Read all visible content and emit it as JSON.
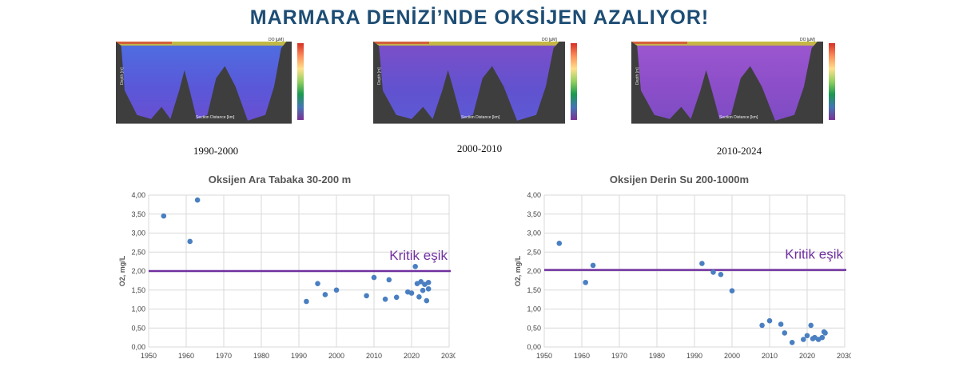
{
  "title": "MARMARA DENİZİ’NDE OKSİJEN AZALIYOR!",
  "sections": [
    {
      "period": "1990-2000",
      "variable": "DO [µM]",
      "depth_label": "Depth [m]",
      "distance_label": "Section Distance [km]"
    },
    {
      "period": "2000-2010",
      "variable": "DO [µM]",
      "depth_label": "Depth [m]",
      "distance_label": "Section Distance [km]"
    },
    {
      "period": "2010-2024",
      "variable": "DO [µM]",
      "depth_label": "Depth [m]",
      "distance_label": "Section Distance [km]"
    }
  ],
  "chart_data": [
    {
      "type": "scatter",
      "title": "Oksijen Ara Tabaka 30-200 m",
      "ylabel": "O2, mg/L",
      "xlabel": "",
      "xlim": [
        1950,
        2030
      ],
      "ylim": [
        0,
        4
      ],
      "xticks": [
        "1950",
        "1960",
        "1970",
        "1980",
        "1990",
        "2000",
        "2010",
        "2020",
        "2030"
      ],
      "yticks": [
        "0,00",
        "0,50",
        "1,00",
        "1,50",
        "2,00",
        "2,50",
        "3,00",
        "3,50",
        "4,00"
      ],
      "threshold": {
        "value": 2.0,
        "label": "Kritik eşik",
        "color": "#7030a0"
      },
      "point_color": "#4a7fc1",
      "grid": true,
      "points": [
        [
          1954,
          3.45
        ],
        [
          1961,
          2.78
        ],
        [
          1963,
          3.87
        ],
        [
          1992,
          1.2
        ],
        [
          1995,
          1.67
        ],
        [
          1997,
          1.38
        ],
        [
          2000,
          1.5
        ],
        [
          2008,
          1.35
        ],
        [
          2010,
          1.83
        ],
        [
          2013,
          1.26
        ],
        [
          2014,
          1.77
        ],
        [
          2016,
          1.31
        ],
        [
          2019,
          1.45
        ],
        [
          2020,
          1.42
        ],
        [
          2021,
          2.12
        ],
        [
          2021.5,
          1.67
        ],
        [
          2022,
          1.32
        ],
        [
          2022.5,
          1.72
        ],
        [
          2023,
          1.49
        ],
        [
          2023.5,
          1.65
        ],
        [
          2024,
          1.22
        ],
        [
          2024.5,
          1.7
        ],
        [
          2024.5,
          1.53
        ]
      ]
    },
    {
      "type": "scatter",
      "title": "Oksijen Derin Su 200-1000m",
      "ylabel": "O2, mg/L",
      "xlabel": "",
      "xlim": [
        1950,
        2030
      ],
      "ylim": [
        0,
        4
      ],
      "xticks": [
        "1950",
        "1960",
        "1970",
        "1980",
        "1990",
        "2000",
        "2010",
        "2020",
        "2030"
      ],
      "yticks": [
        "0,00",
        "0,50",
        "1,00",
        "1,50",
        "2,00",
        "2,50",
        "3,00",
        "3,50",
        "4,00"
      ],
      "threshold": {
        "value": 2.03,
        "label": "Kritik eşik",
        "color": "#7030a0"
      },
      "point_color": "#4a7fc1",
      "grid": true,
      "points": [
        [
          1954,
          2.73
        ],
        [
          1961,
          1.7
        ],
        [
          1963,
          2.15
        ],
        [
          1992,
          2.2
        ],
        [
          1995,
          1.97
        ],
        [
          1997,
          1.91
        ],
        [
          2000,
          1.48
        ],
        [
          2008,
          0.57
        ],
        [
          2010,
          0.69
        ],
        [
          2013,
          0.6
        ],
        [
          2014,
          0.37
        ],
        [
          2016,
          0.12
        ],
        [
          2019,
          0.2
        ],
        [
          2020,
          0.3
        ],
        [
          2021,
          0.57
        ],
        [
          2021.5,
          0.22
        ],
        [
          2022,
          0.25
        ],
        [
          2023,
          0.2
        ],
        [
          2024,
          0.25
        ],
        [
          2024.5,
          0.4
        ],
        [
          2024.8,
          0.37
        ]
      ]
    }
  ]
}
